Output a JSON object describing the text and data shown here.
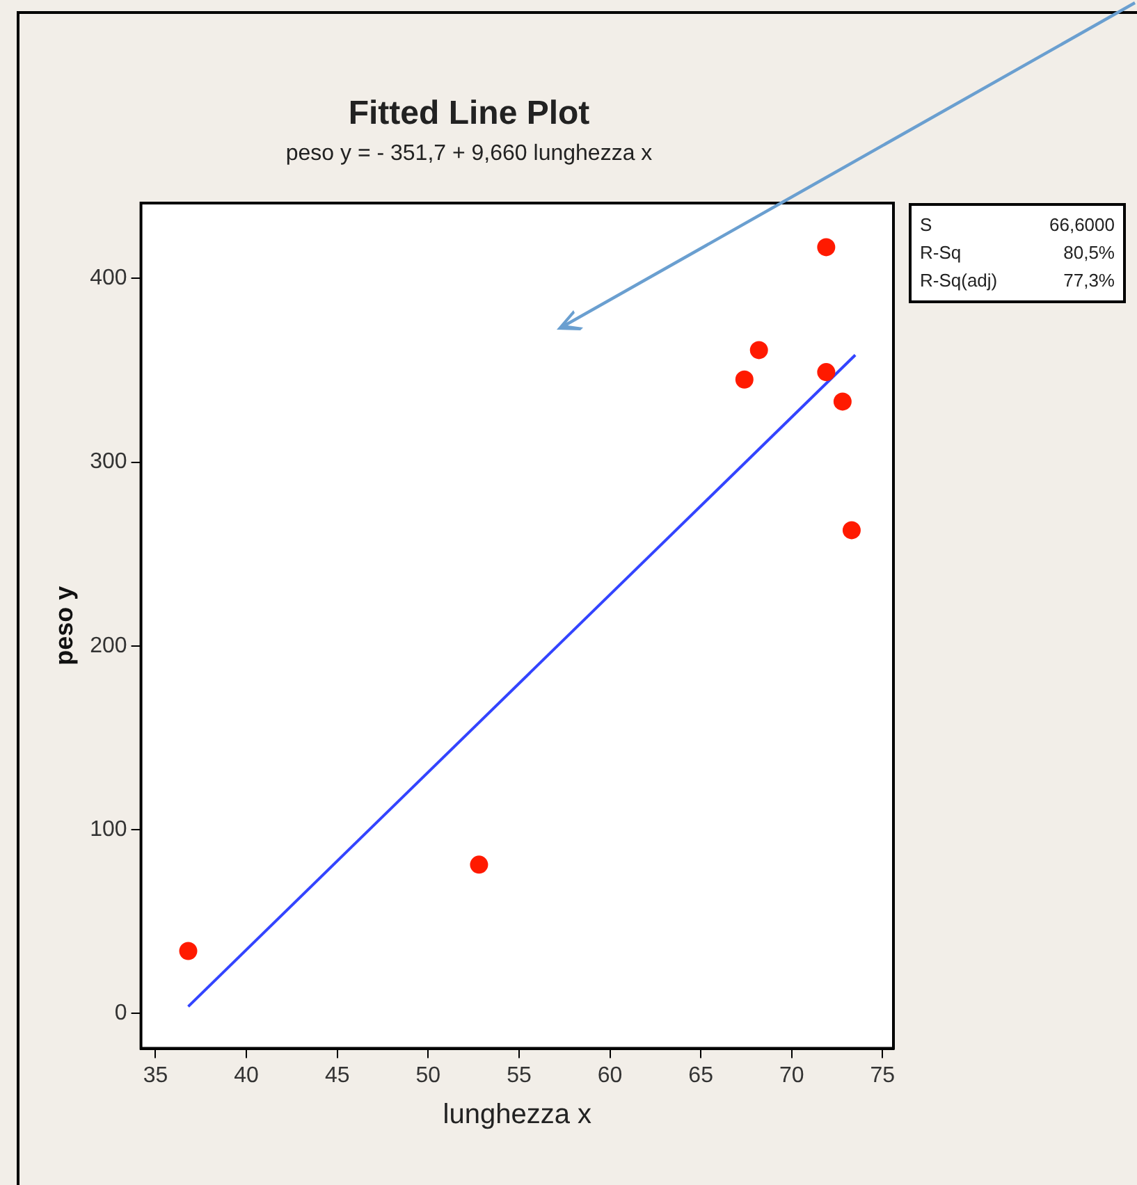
{
  "chart_data": {
    "type": "scatter",
    "title": "Fitted Line Plot",
    "subtitle": "peso y = - 351,7 + 9,660 lunghezza x",
    "xlabel": "lunghezza x",
    "ylabel": "peso y",
    "annotations": [
      "S 66,6000",
      "R-Sq 80,5%",
      "R-Sq(adj) 77,3%"
    ],
    "series": [
      {
        "type": "scatter",
        "marker": "circle",
        "color": "#ff1a00",
        "x": [
          36.8,
          52.8,
          67.4,
          68.2,
          71.9,
          71.9,
          72.8,
          73.3
        ],
        "values": [
          34,
          81,
          345,
          361,
          349,
          417,
          333,
          263
        ]
      },
      {
        "type": "line",
        "color": "#3344ff",
        "x": [
          36.8,
          73.5
        ],
        "values": [
          3.8,
          358.3
        ]
      }
    ],
    "xlim": [
      34.2,
      75.6
    ],
    "xticks": [
      35,
      40,
      45,
      50,
      55,
      60,
      65,
      70,
      75
    ],
    "ylim": [
      -19,
      441
    ],
    "yticks": [
      0,
      100,
      200,
      300,
      400
    ],
    "legend": false,
    "line_style": "solid"
  }
}
